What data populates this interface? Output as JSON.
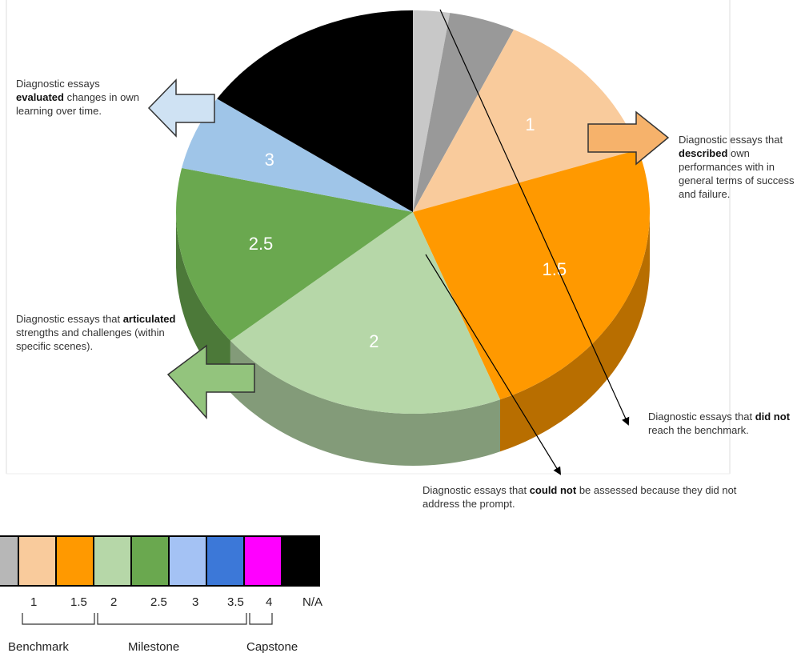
{
  "chart_data": {
    "type": "pie",
    "slices": [
      {
        "label": "",
        "value": 2.5,
        "color": "#c8c8c8"
      },
      {
        "label": "",
        "value": 4.5,
        "color": "#999999"
      },
      {
        "label": "1",
        "value": 13,
        "color": "#f9cb9c"
      },
      {
        "label": "1.5",
        "value": 24,
        "color": "#ff9900"
      },
      {
        "label": "2",
        "value": 20,
        "color": "#b6d7a8"
      },
      {
        "label": "2.5",
        "value": 14.5,
        "color": "#6aa84f"
      },
      {
        "label": "3",
        "value": 6,
        "color": "#9fc5e8"
      },
      {
        "label": "N/A",
        "value": 15.5,
        "color": "#000000"
      }
    ]
  },
  "annotations": {
    "evaluated": {
      "pre": "Diagnostic essays",
      "bold": "evaluated",
      "post": "changes in own learning over time."
    },
    "described": {
      "pre": "Diagnostic essays that",
      "bold": "described",
      "post": "own performances with in general terms of success and failure."
    },
    "articulated": {
      "pre": "Diagnostic essays that",
      "bold": "articulated",
      "post": "strengths and challenges (within specific scenes)."
    },
    "did_not": {
      "pre": "Diagnostic essays that",
      "bold": "did not",
      "post": "reach the benchmark."
    },
    "could_not": {
      "pre": "Diagnostic essays that",
      "bold": "could not",
      "post": "be assessed because they did not address the prompt."
    }
  },
  "legend": {
    "swatches": [
      "#b7b7b7",
      "#f9cb9c",
      "#ff9900",
      "#b6d7a8",
      "#6aa84f",
      "#a4c2f4",
      "#3c78d8",
      "#ff00ff",
      "#000000"
    ],
    "ticks": [
      "1",
      "1.5",
      "2",
      "2.5",
      "3",
      "3.5",
      "4",
      "N/A"
    ],
    "groups": [
      "Benchmark",
      "Milestone",
      "Capstone"
    ]
  }
}
